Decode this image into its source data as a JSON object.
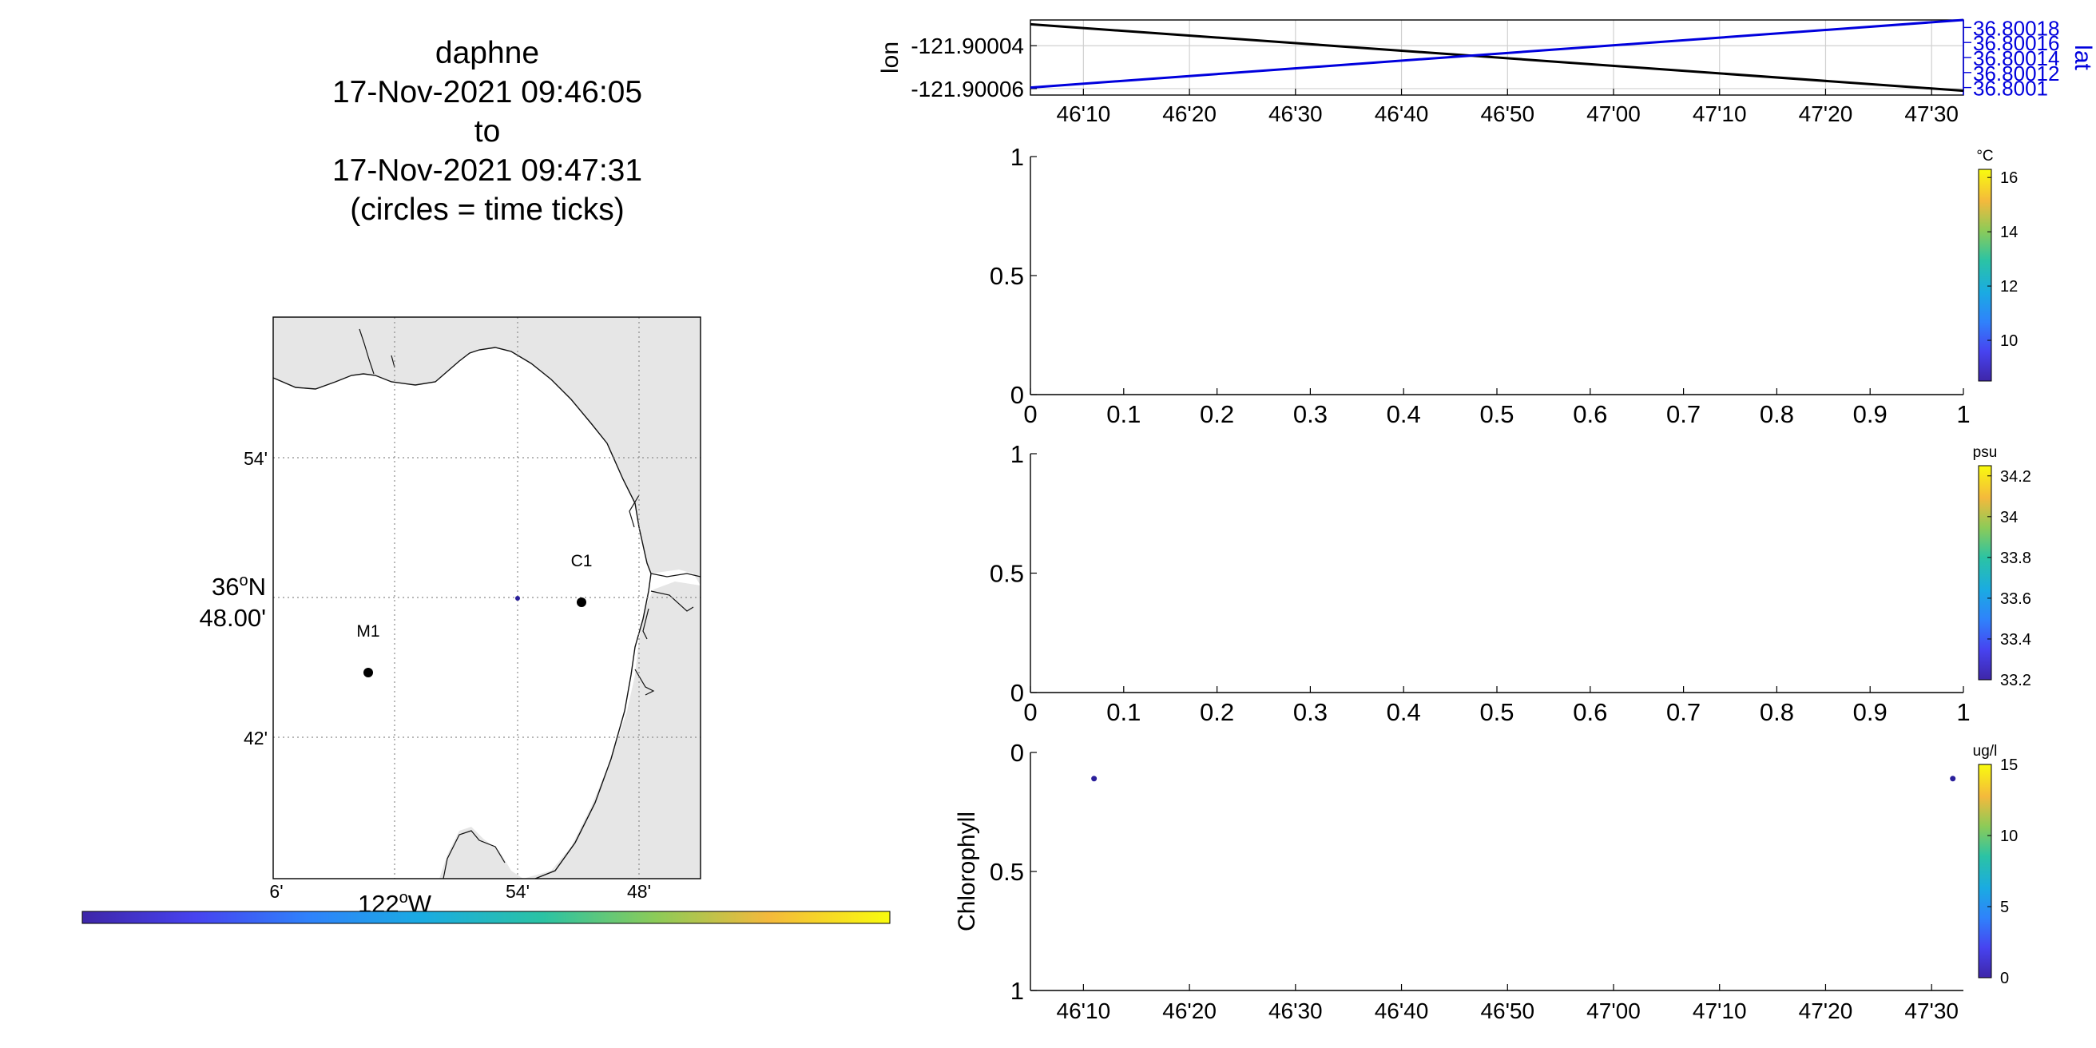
{
  "title_lines": [
    "daphne",
    "17-Nov-2021 09:46:05",
    "to",
    "17-Nov-2021 09:47:31",
    "(circles = time ticks)"
  ],
  "colors": {
    "axis": "#000000",
    "lat_series": "#0000dd",
    "lon_series": "#000000",
    "land": "#e6e6e6",
    "grid": "#8c8c8c",
    "point": "#2a1f9b"
  },
  "map": {
    "lat_tick_labels": [
      "54'",
      "36°N 48.00'",
      "42'"
    ],
    "lat_center_label_lines": [
      "36",
      "o",
      "N",
      "48.00'"
    ],
    "lon_tick_labels": [
      "6'",
      "54'",
      "48'"
    ],
    "lon_axis_label": [
      "122",
      "o",
      "W"
    ],
    "stations": [
      {
        "name": "M1"
      },
      {
        "name": "C1"
      }
    ],
    "colorbar": "parula",
    "track_point": true
  },
  "chart_data": [
    {
      "type": "line",
      "title": "",
      "xlabel": "",
      "ylabel": "lon",
      "y2label": "lat",
      "x_tick_labels": [
        "46'10",
        "46'20",
        "46'30",
        "46'40",
        "46'50",
        "47'00",
        "47'10",
        "47'20",
        "47'30"
      ],
      "x_range_seconds": [
        365,
        453
      ],
      "y_ticks": [
        "-121.90004",
        "-121.90006"
      ],
      "y_range": [
        -121.900063,
        -121.900028
      ],
      "y2_ticks": [
        "36.8001",
        "36.80012",
        "36.80014",
        "36.80016",
        "36.80018"
      ],
      "y2_range": [
        36.80009,
        36.80019
      ],
      "grid": true,
      "series": [
        {
          "name": "lon",
          "axis": "left",
          "x": [
            365,
            453
          ],
          "y": [
            -121.90003,
            -121.900061
          ]
        },
        {
          "name": "lat",
          "axis": "right",
          "x": [
            365,
            453
          ],
          "y": [
            36.8001,
            36.80019
          ]
        }
      ]
    },
    {
      "type": "scatter",
      "x_tick_labels": [
        "0",
        "0.1",
        "0.2",
        "0.3",
        "0.4",
        "0.5",
        "0.6",
        "0.7",
        "0.8",
        "0.9",
        "1"
      ],
      "xlim": [
        0,
        1
      ],
      "y_tick_labels": [
        "0",
        "0.5",
        "1"
      ],
      "ylim": [
        0,
        1
      ],
      "series": [],
      "colorbar": {
        "unit": "°C",
        "ticks": [
          "10",
          "12",
          "14",
          "16"
        ],
        "range": [
          8.5,
          16.3
        ]
      }
    },
    {
      "type": "scatter",
      "x_tick_labels": [
        "0",
        "0.1",
        "0.2",
        "0.3",
        "0.4",
        "0.5",
        "0.6",
        "0.7",
        "0.8",
        "0.9",
        "1"
      ],
      "xlim": [
        0,
        1
      ],
      "y_tick_labels": [
        "0",
        "0.5",
        "1"
      ],
      "ylim": [
        0,
        1
      ],
      "series": [],
      "colorbar": {
        "unit": "psu",
        "ticks": [
          "33.2",
          "33.4",
          "33.6",
          "33.8",
          "34",
          "34.2"
        ],
        "range": [
          33.2,
          34.25
        ]
      }
    },
    {
      "type": "scatter",
      "ylabel": "Chlorophyll",
      "x_tick_labels": [
        "46'10",
        "46'20",
        "46'30",
        "46'40",
        "46'50",
        "47'00",
        "47'10",
        "47'20",
        "47'30"
      ],
      "x_range_seconds": [
        365,
        453
      ],
      "y_tick_labels": [
        "0",
        "0.5",
        "1"
      ],
      "ylim": [
        0,
        1
      ],
      "y_reversed": true,
      "series": [
        {
          "name": "",
          "x": [
            371,
            452
          ],
          "y": [
            0.11,
            0.11
          ]
        }
      ],
      "colorbar": {
        "unit": "ug/l",
        "ticks": [
          "0",
          "5",
          "10",
          "15"
        ],
        "range": [
          0,
          15
        ]
      }
    }
  ]
}
